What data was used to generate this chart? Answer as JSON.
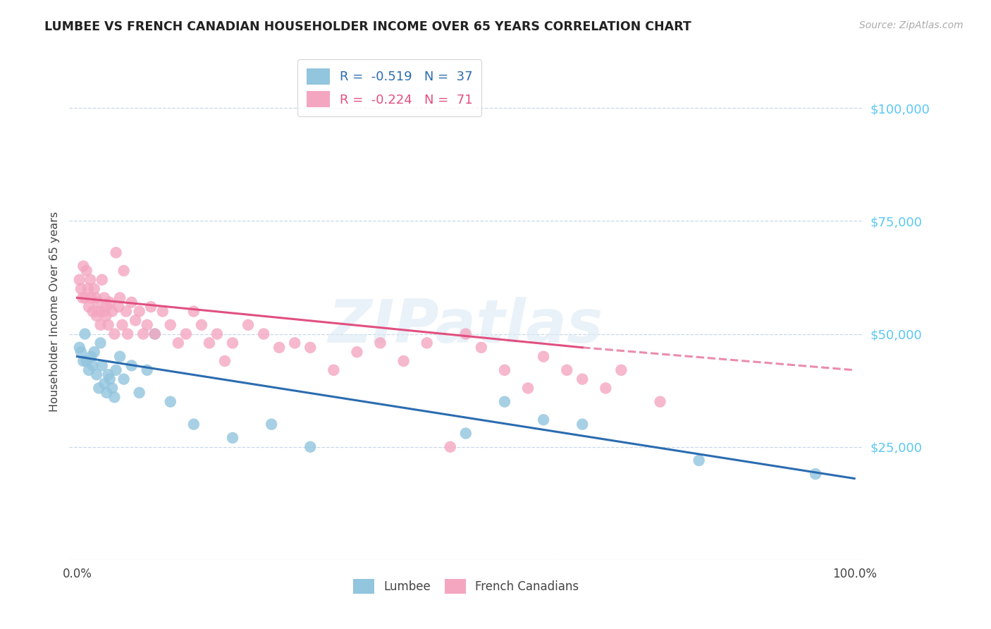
{
  "title": "LUMBEE VS FRENCH CANADIAN HOUSEHOLDER INCOME OVER 65 YEARS CORRELATION CHART",
  "source": "Source: ZipAtlas.com",
  "ylabel": "Householder Income Over 65 years",
  "watermark": "ZIPatlas",
  "legend_blue_r": "R = ",
  "legend_blue_rv": "-0.519",
  "legend_blue_n": "  N = ",
  "legend_blue_nv": "37",
  "legend_pink_r": "R = ",
  "legend_pink_rv": "-0.224",
  "legend_pink_n": "  N = ",
  "legend_pink_nv": "71",
  "legend_bottom_blue": "Lumbee",
  "legend_bottom_pink": "French Canadians",
  "blue_scatter_color": "#92c5de",
  "pink_scatter_color": "#f4a6c0",
  "blue_line_color": "#2b6cb0",
  "pink_line_color": "#e05080",
  "background_color": "#ffffff",
  "grid_color": "#c8d8e8",
  "yaxis_tick_color": "#5bc8f5",
  "title_color": "#222222",
  "lumbee_x": [
    0.3,
    0.5,
    0.8,
    1.0,
    1.2,
    1.5,
    1.8,
    2.0,
    2.2,
    2.5,
    2.8,
    3.0,
    3.2,
    3.5,
    3.8,
    4.0,
    4.2,
    4.5,
    4.8,
    5.0,
    5.5,
    6.0,
    7.0,
    8.0,
    9.0,
    10.0,
    12.0,
    15.0,
    20.0,
    25.0,
    30.0,
    50.0,
    55.0,
    60.0,
    65.0,
    80.0,
    95.0
  ],
  "lumbee_y": [
    47000,
    46000,
    44000,
    50000,
    44000,
    42000,
    45000,
    43000,
    46000,
    41000,
    38000,
    48000,
    43000,
    39000,
    37000,
    41000,
    40000,
    38000,
    36000,
    42000,
    45000,
    40000,
    43000,
    37000,
    42000,
    50000,
    35000,
    30000,
    27000,
    30000,
    25000,
    28000,
    35000,
    31000,
    30000,
    22000,
    19000
  ],
  "french_x": [
    0.3,
    0.5,
    0.7,
    0.8,
    1.0,
    1.2,
    1.4,
    1.5,
    1.7,
    1.8,
    2.0,
    2.2,
    2.4,
    2.5,
    2.7,
    2.8,
    3.0,
    3.2,
    3.4,
    3.5,
    3.7,
    3.8,
    4.0,
    4.2,
    4.5,
    4.8,
    5.0,
    5.3,
    5.5,
    5.8,
    6.0,
    6.3,
    6.5,
    7.0,
    7.5,
    8.0,
    8.5,
    9.0,
    9.5,
    10.0,
    11.0,
    12.0,
    13.0,
    14.0,
    15.0,
    16.0,
    17.0,
    18.0,
    19.0,
    20.0,
    22.0,
    24.0,
    26.0,
    28.0,
    30.0,
    33.0,
    36.0,
    39.0,
    42.0,
    45.0,
    48.0,
    50.0,
    52.0,
    55.0,
    58.0,
    60.0,
    63.0,
    65.0,
    68.0,
    70.0,
    75.0
  ],
  "french_y": [
    62000,
    60000,
    58000,
    65000,
    58000,
    64000,
    60000,
    56000,
    62000,
    58000,
    55000,
    60000,
    58000,
    54000,
    57000,
    55000,
    52000,
    62000,
    55000,
    58000,
    54000,
    56000,
    52000,
    57000,
    55000,
    50000,
    68000,
    56000,
    58000,
    52000,
    64000,
    55000,
    50000,
    57000,
    53000,
    55000,
    50000,
    52000,
    56000,
    50000,
    55000,
    52000,
    48000,
    50000,
    55000,
    52000,
    48000,
    50000,
    44000,
    48000,
    52000,
    50000,
    47000,
    48000,
    47000,
    42000,
    46000,
    48000,
    44000,
    48000,
    25000,
    50000,
    47000,
    42000,
    38000,
    45000,
    42000,
    40000,
    38000,
    42000,
    35000
  ],
  "pink_dash_start": 62,
  "y_min": 0,
  "y_max": 110000,
  "x_min": -1,
  "x_max": 101
}
